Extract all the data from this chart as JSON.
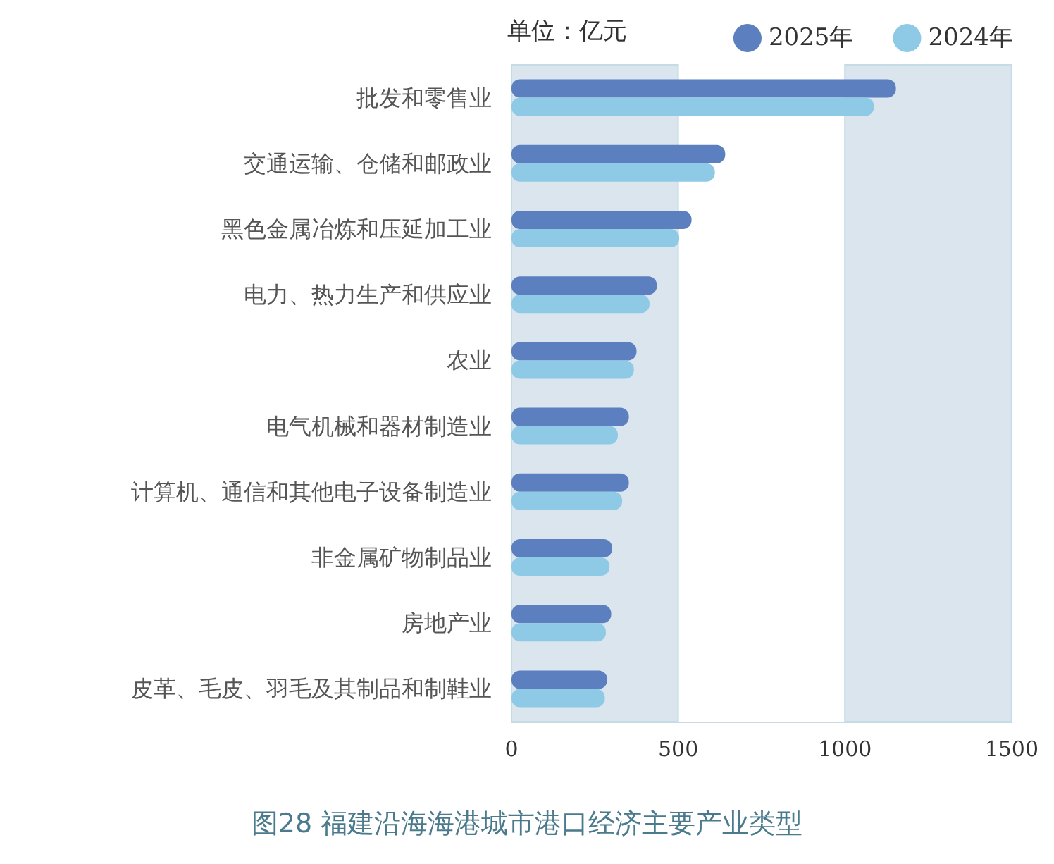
{
  "chart_data": {
    "type": "bar",
    "orientation": "horizontal",
    "title": "图28 福建沿海海港城市港口经济主要产业类型",
    "annotations": [
      "单位：亿元"
    ],
    "categories": [
      "批发和零售业",
      "交通运输、仓储和邮政业",
      "黑色金属冶炼和压延加工业",
      "电力、热力生产和供应业",
      "农业",
      "电气机械和器材制造业",
      "计算机、通信和其他电子设备制造业",
      "非金属矿物制品业",
      "房地产业",
      "皮革、毛皮、羽毛及其制品和制鞋业"
    ],
    "series": [
      {
        "name": "2025年",
        "color": "#5b7fbf",
        "values": [
          1153,
          641,
          540,
          436,
          375,
          352,
          352,
          302,
          299,
          287
        ]
      },
      {
        "name": "2024年",
        "color": "#8ecae6",
        "values": [
          1087,
          610,
          503,
          414,
          367,
          319,
          332,
          294,
          283,
          280
        ]
      }
    ],
    "xlim": [
      0,
      1500
    ],
    "xticks": [
      0,
      500,
      1000,
      1500
    ],
    "bands": [
      {
        "axis": "x",
        "from": 0,
        "to": 500,
        "color": "#dae5ee"
      },
      {
        "axis": "x",
        "from": 1000,
        "to": 1500,
        "color": "#dae5ee"
      }
    ],
    "grid": false,
    "legend": "top right"
  }
}
